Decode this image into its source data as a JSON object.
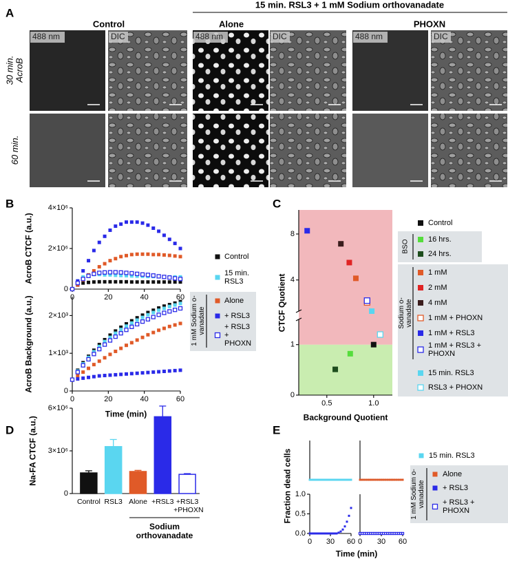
{
  "panel_letters": [
    "A",
    "B",
    "C",
    "D",
    "E"
  ],
  "panel_a": {
    "treatment": "15 min. RSL3 + 1 mM Sodium orthovanadate",
    "conditions": [
      "Control",
      "Alone",
      "PHOXN"
    ],
    "rows": [
      "30 min. AcroB",
      "60 min."
    ],
    "channels": [
      "488 nm",
      "DIC"
    ]
  },
  "chart_data": [
    {
      "type": "line",
      "ylabel": "AcroB CTCF (a.u.)",
      "legend_group": "1 mM Sodium o-vanadate",
      "x": [
        0,
        3,
        6,
        9,
        12,
        15,
        18,
        21,
        24,
        27,
        30,
        33,
        36,
        39,
        42,
        45,
        48,
        51,
        54,
        57,
        60
      ],
      "xlim": [
        0,
        60
      ],
      "xticks": [
        0,
        20,
        40,
        60
      ],
      "ylim": [
        0,
        4000000
      ],
      "yticks": [
        0,
        {
          "value": 2000000,
          "label": "2×10⁶"
        },
        {
          "value": 4000000,
          "label": "4×10⁶"
        }
      ],
      "series": [
        {
          "name": "Control",
          "color": "#111111",
          "open": false,
          "values": [
            0,
            200000,
            300000,
            330000,
            350000,
            360000,
            360000,
            360000,
            360000,
            360000,
            360000,
            350000,
            350000,
            350000,
            350000,
            350000,
            350000,
            350000,
            350000,
            350000,
            350000
          ]
        },
        {
          "name": "15 min. RSL3",
          "color": "#5ad6f0",
          "open": false,
          "values": [
            0,
            400000,
            600000,
            700000,
            720000,
            720000,
            700000,
            700000,
            680000,
            670000,
            660000,
            650000,
            640000,
            630000,
            620000,
            620000,
            610000,
            600000,
            600000,
            600000,
            600000
          ]
        },
        {
          "name": "Alone",
          "color": "#e05a28",
          "open": false,
          "values": [
            0,
            200000,
            450000,
            700000,
            900000,
            1100000,
            1250000,
            1400000,
            1500000,
            1600000,
            1650000,
            1700000,
            1720000,
            1720000,
            1720000,
            1700000,
            1700000,
            1680000,
            1660000,
            1630000,
            1600000
          ]
        },
        {
          "name": "+ RSL3",
          "color": "#2a2ae8",
          "open": false,
          "values": [
            0,
            400000,
            900000,
            1400000,
            1900000,
            2300000,
            2600000,
            2900000,
            3100000,
            3200000,
            3300000,
            3300000,
            3300000,
            3250000,
            3150000,
            3000000,
            2850000,
            2650000,
            2450000,
            2250000,
            2000000
          ]
        },
        {
          "name": "+ RSL3 + PHOXN",
          "color": "#2a2ae8",
          "open": true,
          "values": [
            0,
            300000,
            500000,
            650000,
            750000,
            800000,
            820000,
            830000,
            830000,
            820000,
            800000,
            780000,
            750000,
            720000,
            700000,
            670000,
            630000,
            600000,
            570000,
            530000,
            500000
          ]
        }
      ]
    },
    {
      "type": "line",
      "ylabel": "AcroB Background (a.u.)",
      "xlabel": "Time (min)",
      "x": [
        0,
        3,
        6,
        9,
        12,
        15,
        18,
        21,
        24,
        27,
        30,
        33,
        36,
        39,
        42,
        45,
        48,
        51,
        54,
        57,
        60
      ],
      "xlim": [
        0,
        60
      ],
      "xticks": [
        0,
        20,
        40,
        60
      ],
      "ylim": [
        0,
        2500
      ],
      "yticks": [
        0,
        {
          "value": 1000,
          "label": "1×10³"
        },
        {
          "value": 2000,
          "label": "2×10³"
        }
      ],
      "series": [
        {
          "color": "#111111",
          "open": false,
          "values": [
            300,
            550,
            750,
            920,
            1080,
            1230,
            1360,
            1480,
            1590,
            1690,
            1780,
            1860,
            1940,
            2010,
            2080,
            2140,
            2200,
            2250,
            2290,
            2330,
            2370
          ]
        },
        {
          "color": "#5ad6f0",
          "open": false,
          "values": [
            300,
            530,
            720,
            890,
            1040,
            1180,
            1310,
            1420,
            1530,
            1630,
            1720,
            1800,
            1880,
            1950,
            2020,
            2080,
            2140,
            2190,
            2240,
            2280,
            2320
          ]
        },
        {
          "color": "#e05a28",
          "open": false,
          "values": [
            300,
            400,
            500,
            600,
            700,
            790,
            880,
            970,
            1050,
            1130,
            1210,
            1280,
            1350,
            1420,
            1490,
            1550,
            1610,
            1660,
            1710,
            1750,
            1790
          ]
        },
        {
          "color": "#2a2ae8",
          "open": false,
          "values": [
            300,
            320,
            340,
            360,
            380,
            400,
            410,
            420,
            430,
            440,
            450,
            460,
            470,
            480,
            490,
            500,
            510,
            520,
            530,
            540,
            550
          ]
        },
        {
          "color": "#2a2ae8",
          "open": true,
          "values": [
            300,
            500,
            680,
            840,
            980,
            1110,
            1230,
            1340,
            1440,
            1530,
            1620,
            1700,
            1770,
            1840,
            1900,
            1960,
            2020,
            2070,
            2110,
            2150,
            2190
          ]
        }
      ]
    },
    {
      "type": "scatter",
      "xlabel": "Background Quotient",
      "ylabel": "CTCF Quotient",
      "xlim": [
        0.2,
        1.2
      ],
      "xticks": [
        0.5,
        {
          "value": 1,
          "label": "1.0"
        }
      ],
      "ysegments": [
        {
          "ylim": [
            0,
            1.5
          ],
          "yticks": [
            0,
            1
          ]
        },
        {
          "ylim": [
            2.5,
            11.5
          ],
          "yticks": [
            4,
            8
          ],
          "log": true
        }
      ],
      "bands": [
        {
          "range": [
            0,
            1
          ],
          "color": "#c9edb0"
        },
        {
          "range": [
            1,
            11.5
          ],
          "color": "#f2b8bc"
        }
      ],
      "legend_groups": [
        "BSO",
        "Sodium o-vanadate"
      ],
      "series": [
        {
          "name": "Control",
          "color": "#111111",
          "open": false,
          "x": [
            1.0
          ],
          "values": [
            1.0
          ]
        },
        {
          "name": "16 hrs.",
          "color": "#55dd3c",
          "open": false,
          "x": [
            0.75
          ],
          "values": [
            0.82
          ]
        },
        {
          "name": "24 hrs.",
          "color": "#1d4d1d",
          "open": false,
          "x": [
            0.59
          ],
          "values": [
            0.51
          ]
        },
        {
          "name": "1 mM",
          "color": "#e05a28",
          "open": false,
          "x": [
            0.81
          ],
          "values": [
            4.1
          ]
        },
        {
          "name": "2 mM",
          "color": "#e02424",
          "open": false,
          "x": [
            0.74
          ],
          "values": [
            5.2
          ]
        },
        {
          "name": "4 mM",
          "color": "#3a1c1c",
          "open": false,
          "x": [
            0.65
          ],
          "values": [
            6.9
          ]
        },
        {
          "name": "1 mM + PHOXN",
          "color": "#e05a28",
          "open": true,
          "x": [
            0.93
          ],
          "values": [
            2.85
          ]
        },
        {
          "name": "1 mM + RSL3",
          "color": "#2a2ae8",
          "open": false,
          "x": [
            0.29
          ],
          "values": [
            8.4
          ]
        },
        {
          "name": "1 mM + RSL3 + PHOXN",
          "color": "#2a2ae8",
          "open": true,
          "x": [
            0.93
          ],
          "values": [
            2.93
          ]
        },
        {
          "name": "15 min. RSL3",
          "color": "#5ad6f0",
          "open": false,
          "x": [
            0.98
          ],
          "values": [
            2.5
          ]
        },
        {
          "name": "RSL3 + PHOXN",
          "color": "#5ad6f0",
          "open": true,
          "x": [
            1.07
          ],
          "values": [
            1.2
          ]
        }
      ]
    },
    {
      "type": "bar",
      "ylabel": "Na-FA CTCF (a.u.)",
      "group_label": "Sodium orthovanadate",
      "categories": [
        "Control",
        "RSL3",
        "Alone",
        "+RSL3",
        "+RSL3 +PHOXN"
      ],
      "values": [
        1450000,
        3300000,
        1550000,
        5400000,
        1350000
      ],
      "errors": [
        150000,
        500000,
        80000,
        750000,
        50000
      ],
      "colors": [
        "#111111",
        "#5ad6f0",
        "#e05a28",
        "#2a2ae8",
        "#ffffff"
      ],
      "edgecolors": [
        "#111111",
        "#5ad6f0",
        "#e05a28",
        "#2a2ae8",
        "#2a2ae8"
      ],
      "ylim": [
        0,
        6000000
      ],
      "yticks": [
        0,
        {
          "value": 3000000,
          "label": "3×10⁶"
        },
        {
          "value": 6000000,
          "label": "6×10⁶"
        }
      ]
    },
    {
      "type": "line",
      "x": [
        0,
        3,
        6,
        9,
        12,
        15,
        18,
        21,
        24,
        27,
        30,
        33,
        36,
        39,
        42,
        45,
        48,
        51,
        54,
        57,
        60
      ],
      "xlim": [
        0,
        60
      ],
      "ylim": [
        0,
        1
      ],
      "series": [
        {
          "name": "15 min. RSL3",
          "color": "#5ad6f0",
          "open": false,
          "values": [
            0,
            0,
            0,
            0,
            0,
            0,
            0,
            0,
            0,
            0,
            0,
            0,
            0,
            0,
            0,
            0,
            0,
            0,
            0,
            0,
            0
          ]
        }
      ]
    },
    {
      "type": "line",
      "x": [
        0,
        3,
        6,
        9,
        12,
        15,
        18,
        21,
        24,
        27,
        30,
        33,
        36,
        39,
        42,
        45,
        48,
        51,
        54,
        57,
        60
      ],
      "xlim": [
        0,
        60
      ],
      "ylim": [
        0,
        1
      ],
      "series": [
        {
          "name": "Alone",
          "color": "#e05a28",
          "open": false,
          "values": [
            0,
            0,
            0,
            0,
            0,
            0,
            0,
            0,
            0,
            0,
            0,
            0,
            0,
            0,
            0,
            0,
            0,
            0,
            0,
            0,
            0
          ]
        }
      ]
    },
    {
      "type": "line",
      "xlabel": "Time (min)",
      "ylabel": "Fraction dead cells",
      "legend_group": "1 mM Sodium o-vanadate",
      "x": [
        0,
        3,
        6,
        9,
        12,
        15,
        18,
        21,
        24,
        27,
        30,
        33,
        36,
        39,
        42,
        45,
        48,
        51,
        54,
        57,
        60
      ],
      "xlim": [
        0,
        60
      ],
      "xticks": [
        0,
        30,
        60
      ],
      "ylim": [
        0,
        1
      ],
      "yticks": [
        {
          "value": 0,
          "label": "0.0"
        },
        0.5,
        {
          "value": 1,
          "label": "1.0"
        }
      ],
      "series": [
        {
          "name": "+ RSL3",
          "color": "#2a2ae8",
          "open": false,
          "values": [
            0,
            0,
            0,
            0,
            0,
            0,
            0,
            0,
            0,
            0,
            0,
            0,
            0,
            0,
            0.02,
            0.05,
            0.1,
            0.18,
            0.3,
            0.45,
            0.65
          ]
        }
      ]
    },
    {
      "type": "line",
      "x": [
        0,
        3,
        6,
        9,
        12,
        15,
        18,
        21,
        24,
        27,
        30,
        33,
        36,
        39,
        42,
        45,
        48,
        51,
        54,
        57,
        60
      ],
      "xlim": [
        0,
        60
      ],
      "xticks": [
        0,
        30,
        60
      ],
      "ylim": [
        0,
        1
      ],
      "series": [
        {
          "name": "+ RSL3 + PHOXN",
          "color": "#2a2ae8",
          "open": true,
          "values": [
            0,
            0,
            0,
            0,
            0,
            0,
            0,
            0,
            0,
            0,
            0,
            0,
            0,
            0,
            0,
            0,
            0,
            0,
            0,
            0,
            0
          ]
        }
      ]
    }
  ]
}
